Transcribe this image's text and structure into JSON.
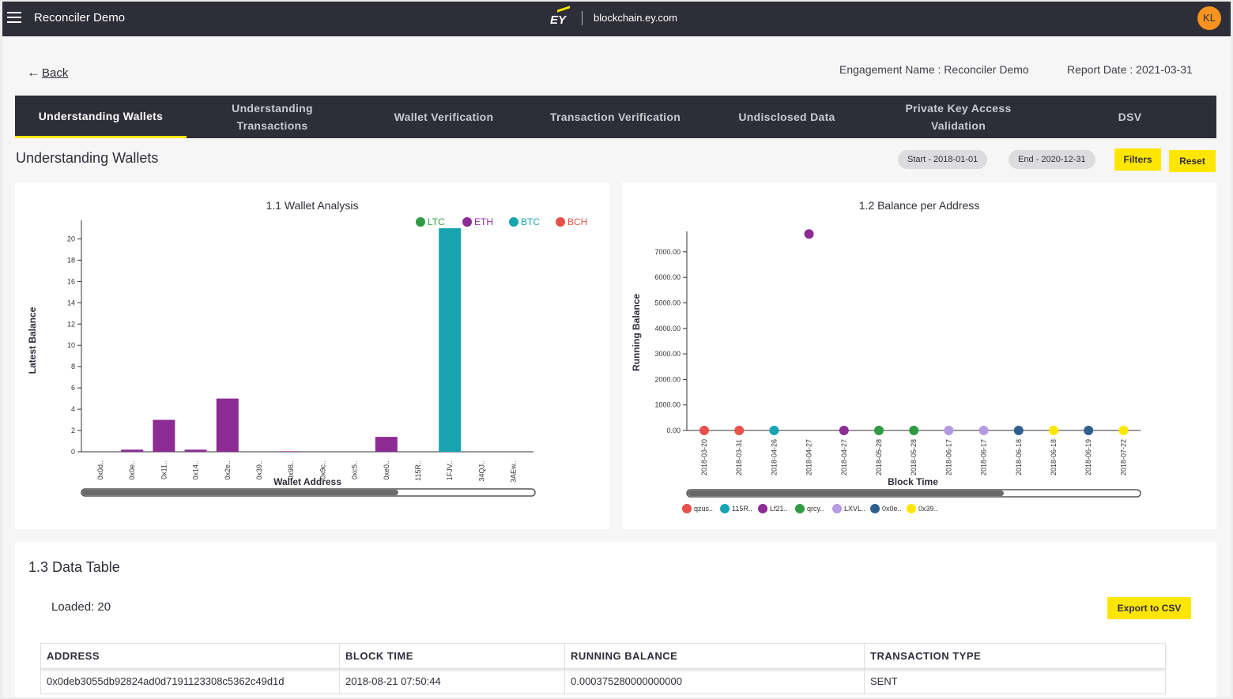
{
  "header": {
    "app_title": "Reconciler Demo",
    "logo_text": "EY",
    "domain": "blockchain.ey.com",
    "avatar_initials": "KL"
  },
  "page": {
    "back_label": "Back",
    "engagement": "Engagement Name : Reconciler Demo",
    "report_date": "Report Date : 2021-03-31"
  },
  "tabs": [
    {
      "label": "Understanding Wallets",
      "active": true
    },
    {
      "label": "Understanding Transactions",
      "active": false
    },
    {
      "label": "Wallet Verification",
      "active": false
    },
    {
      "label": "Transaction Verification",
      "active": false
    },
    {
      "label": "Undisclosed Data",
      "active": false
    },
    {
      "label": "Private Key Access Validation",
      "active": false
    },
    {
      "label": "DSV",
      "active": false
    }
  ],
  "section": {
    "title": "Understanding Wallets",
    "start_pill": "Start - 2018-01-01",
    "end_pill": "End - 2020-12-31",
    "filters_label": "Filters",
    "reset_label": "Reset"
  },
  "colors": {
    "LTC": "#2f9a44",
    "ETH": "#8c2b93",
    "BTC": "#18a3b1",
    "BCH": "#e8504a",
    "accent": "#ffe600",
    "nav": "#2e2e38"
  },
  "chart_data": [
    {
      "type": "bar",
      "title": "1.1 Wallet Analysis",
      "xlabel": "Wallet Address",
      "ylabel": "Latest Balance",
      "ylim": [
        0,
        21
      ],
      "yticks": [
        0,
        2,
        4,
        6,
        8,
        10,
        12,
        14,
        16,
        18,
        20
      ],
      "legend": [
        "LTC",
        "ETH",
        "BTC",
        "BCH"
      ],
      "legend_position": "top-right",
      "categories": [
        "0x0d..",
        "0x0e..",
        "0x11..",
        "0x14..",
        "0x2e..",
        "0x39..",
        "0x98..",
        "0x9c..",
        "0xc5..",
        "0xe0..",
        "115R..",
        "1FJV..",
        "34QJ..",
        "3AEw.."
      ],
      "values": [
        0,
        0.2,
        3,
        0.2,
        5,
        0,
        0.05,
        0,
        0,
        1.4,
        0,
        21,
        0,
        0
      ],
      "currency": [
        "ETH",
        "ETH",
        "ETH",
        "ETH",
        "ETH",
        "ETH",
        "ETH",
        "ETH",
        "ETH",
        "ETH",
        "BTC",
        "BTC",
        "BTC",
        "BTC"
      ]
    },
    {
      "type": "scatter",
      "title": "1.2 Balance per Address",
      "xlabel": "Block Time",
      "ylabel": "Running Balance",
      "ylim": [
        0,
        7800
      ],
      "yticks": [
        "0.00",
        "1000.00",
        "2000.00",
        "3000.00",
        "4000.00",
        "5000.00",
        "6000.00",
        "7000.00"
      ],
      "x": [
        "2018-03-20",
        "2018-03-31",
        "2018-04-26",
        "2018-04-27",
        "2018-04-27",
        "2018-05-28",
        "2018-05-28",
        "2018-06-17",
        "2018-06-17",
        "2018-06-18",
        "2018-06-18",
        "2018-06-19",
        "2018-07-22"
      ],
      "y": [
        0,
        0,
        0,
        7700,
        0,
        0,
        0,
        0,
        0,
        0,
        0,
        0,
        0
      ],
      "point_colors": [
        "#e8504a",
        "#e8504a",
        "#18a3b1",
        "#8c2b93",
        "#8c2b93",
        "#2f9a44",
        "#2f9a44",
        "#b49ae0",
        "#b49ae0",
        "#2e5f8e",
        "#ffe600",
        "#2e5f8e",
        "#ffe600"
      ],
      "legend": [
        {
          "name": "qzus..",
          "color": "#e8504a"
        },
        {
          "name": "115R..",
          "color": "#18a3b1"
        },
        {
          "name": "Lf21..",
          "color": "#8c2b93"
        },
        {
          "name": "qrcy..",
          "color": "#2f9a44"
        },
        {
          "name": "LXVL..",
          "color": "#b49ae0"
        },
        {
          "name": "0x0e..",
          "color": "#2e5f8e"
        },
        {
          "name": "0x39..",
          "color": "#ffe600"
        }
      ],
      "legend_position": "bottom"
    }
  ],
  "data_table": {
    "title": "1.3 Data Table",
    "loaded": "Loaded: 20",
    "export_label": "Export to CSV",
    "columns": [
      "ADDRESS",
      "BLOCK TIME",
      "RUNNING BALANCE",
      "TRANSACTION TYPE"
    ],
    "rows": [
      [
        "0x0deb3055db92824ad0d7191123308c5362c49d1d",
        "2018-08-21 07:50:44",
        "0.000375280000000000",
        "SENT"
      ]
    ]
  }
}
